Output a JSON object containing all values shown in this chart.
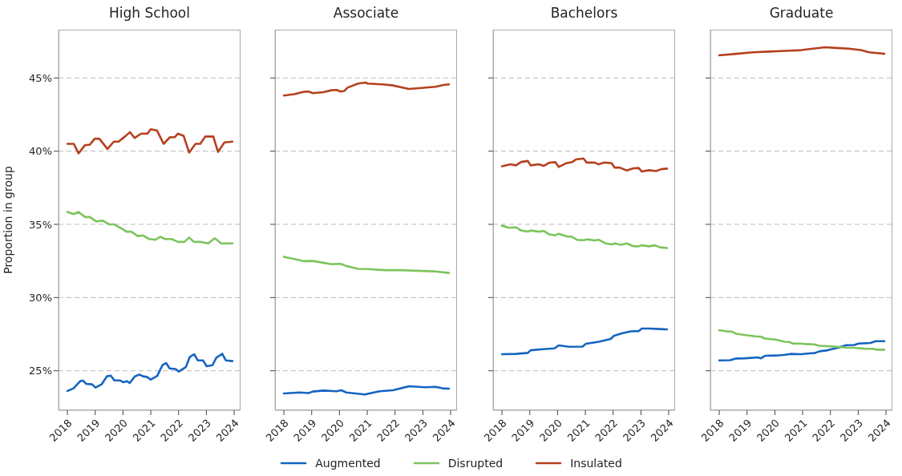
{
  "chart_data": [
    {
      "type": "line",
      "title": "High School",
      "ylabel": "Proportion in group",
      "xlim": [
        2017.68,
        2024.23
      ],
      "xticks": [
        2018,
        2019,
        2020,
        2021,
        2022,
        2023,
        2024
      ],
      "ylim": [
        22.3,
        48.3
      ],
      "yticks": [
        {
          "value": 25,
          "label": "25%"
        },
        {
          "value": 30,
          "label": "30%"
        },
        {
          "value": 35,
          "label": "35%"
        },
        {
          "value": 40,
          "label": "40%"
        },
        {
          "value": 45,
          "label": "45%"
        }
      ],
      "grid": "y",
      "legend": "bottom",
      "marker": "none",
      "line_style": "solid",
      "series": [
        {
          "name": "Augmented",
          "color": "#1565c0",
          "x": [
            2018.0,
            2018.22,
            2018.46,
            2018.56,
            2018.67,
            2018.89,
            2019.01,
            2019.23,
            2019.42,
            2019.56,
            2019.69,
            2019.9,
            2020.0,
            2020.14,
            2020.24,
            2020.43,
            2020.59,
            2020.72,
            2020.86,
            2021.0,
            2021.23,
            2021.42,
            2021.55,
            2021.68,
            2021.89,
            2022.01,
            2022.26,
            2022.4,
            2022.56,
            2022.69,
            2022.88,
            2023.01,
            2023.22,
            2023.36,
            2023.57,
            2023.7,
            2023.94
          ],
          "values": [
            23.62,
            23.8,
            24.29,
            24.33,
            24.11,
            24.07,
            23.85,
            24.07,
            24.62,
            24.67,
            24.34,
            24.34,
            24.22,
            24.29,
            24.16,
            24.62,
            24.74,
            24.62,
            24.58,
            24.4,
            24.65,
            25.38,
            25.53,
            25.16,
            25.12,
            24.95,
            25.25,
            25.93,
            26.13,
            25.71,
            25.71,
            25.31,
            25.38,
            25.89,
            26.16,
            25.71,
            25.66
          ]
        },
        {
          "name": "Disrupted",
          "color": "#7dc45e",
          "x": [
            2018.0,
            2018.23,
            2018.4,
            2018.63,
            2018.81,
            2019.04,
            2019.27,
            2019.5,
            2019.67,
            2019.96,
            2020.13,
            2020.3,
            2020.53,
            2020.71,
            2020.94,
            2021.17,
            2021.34,
            2021.51,
            2021.75,
            2021.98,
            2022.21,
            2022.38,
            2022.55,
            2022.78,
            2023.07,
            2023.3,
            2023.53,
            2023.94
          ],
          "values": [
            35.85,
            35.7,
            35.85,
            35.5,
            35.5,
            35.2,
            35.25,
            35.0,
            35.0,
            34.7,
            34.5,
            34.5,
            34.2,
            34.25,
            34.0,
            33.95,
            34.15,
            34.0,
            34.0,
            33.8,
            33.8,
            34.1,
            33.8,
            33.8,
            33.7,
            34.05,
            33.7,
            33.7
          ]
        },
        {
          "name": "Insulated",
          "color": "#b5401f",
          "x": [
            2018.0,
            2018.23,
            2018.4,
            2018.63,
            2018.81,
            2018.98,
            2019.15,
            2019.44,
            2019.67,
            2019.84,
            2020.07,
            2020.25,
            2020.42,
            2020.65,
            2020.88,
            2021.0,
            2021.23,
            2021.46,
            2021.69,
            2021.86,
            2021.98,
            2022.18,
            2022.38,
            2022.61,
            2022.78,
            2022.96,
            2023.25,
            2023.42,
            2023.65,
            2023.94
          ],
          "values": [
            40.5,
            40.5,
            39.85,
            40.4,
            40.45,
            40.85,
            40.85,
            40.15,
            40.65,
            40.65,
            41.0,
            41.3,
            40.9,
            41.2,
            41.2,
            41.5,
            41.4,
            40.5,
            40.95,
            40.95,
            41.2,
            41.05,
            39.9,
            40.5,
            40.5,
            41.0,
            41.0,
            39.95,
            40.6,
            40.65
          ]
        }
      ]
    },
    {
      "type": "line",
      "title": "Associate",
      "xlim": [
        2017.68,
        2024.23
      ],
      "xticks": [
        2018,
        2019,
        2020,
        2021,
        2022,
        2023,
        2024
      ],
      "ylim": [
        22.3,
        48.3
      ],
      "yticks": [
        {
          "value": 25,
          "label": null
        },
        {
          "value": 30,
          "label": null
        },
        {
          "value": 35,
          "label": null
        },
        {
          "value": 40,
          "label": null
        },
        {
          "value": 45,
          "label": null
        }
      ],
      "tick_labels": "x",
      "grid": "y",
      "marker": "none",
      "line_style": "solid",
      "series": [
        {
          "color": "#1565c0",
          "x": [
            2018.0,
            2018.56,
            2018.89,
            2019.04,
            2019.42,
            2019.9,
            2020.07,
            2020.24,
            2020.91,
            2021.44,
            2021.92,
            2022.5,
            2023.07,
            2023.46,
            2023.7,
            2023.94
          ],
          "values": [
            23.45,
            23.52,
            23.48,
            23.58,
            23.65,
            23.6,
            23.67,
            23.52,
            23.38,
            23.6,
            23.67,
            23.94,
            23.87,
            23.9,
            23.8,
            23.78
          ]
        },
        {
          "color": "#7dc45e",
          "x": [
            2018.0,
            2018.37,
            2018.7,
            2019.04,
            2019.42,
            2019.71,
            2020.04,
            2020.24,
            2020.67,
            2021.01,
            2021.63,
            2022.21,
            2022.78,
            2023.46,
            2023.94
          ],
          "values": [
            32.78,
            32.63,
            32.49,
            32.5,
            32.38,
            32.28,
            32.3,
            32.16,
            31.96,
            31.95,
            31.87,
            31.87,
            31.83,
            31.78,
            31.68
          ]
        },
        {
          "color": "#b5401f",
          "x": [
            2018.0,
            2018.37,
            2018.7,
            2018.89,
            2019.04,
            2019.42,
            2019.71,
            2019.9,
            2020.04,
            2020.17,
            2020.29,
            2020.67,
            2020.94,
            2021.01,
            2021.63,
            2021.92,
            2022.5,
            2022.78,
            2023.46,
            2023.75,
            2023.94
          ],
          "values": [
            43.8,
            43.89,
            44.05,
            44.07,
            43.96,
            44.03,
            44.16,
            44.18,
            44.07,
            44.11,
            44.34,
            44.62,
            44.69,
            44.62,
            44.55,
            44.49,
            44.25,
            44.29,
            44.4,
            44.52,
            44.56
          ]
        }
      ]
    },
    {
      "type": "line",
      "title": "Bachelors",
      "xlim": [
        2017.68,
        2024.23
      ],
      "xticks": [
        2018,
        2019,
        2020,
        2021,
        2022,
        2023,
        2024
      ],
      "ylim": [
        22.3,
        48.3
      ],
      "yticks": [
        {
          "value": 25,
          "label": null
        },
        {
          "value": 30,
          "label": null
        },
        {
          "value": 35,
          "label": null
        },
        {
          "value": 40,
          "label": null
        },
        {
          "value": 45,
          "label": null
        }
      ],
      "tick_labels": "x",
      "grid": "y",
      "marker": "none",
      "line_style": "solid",
      "series": [
        {
          "color": "#1565c0",
          "x": [
            2018.0,
            2018.5,
            2018.93,
            2019.03,
            2019.46,
            2019.89,
            2020.04,
            2020.42,
            2020.9,
            2021.02,
            2021.48,
            2021.91,
            2022.03,
            2022.34,
            2022.63,
            2022.92,
            2023.03,
            2023.3,
            2023.69,
            2023.94
          ],
          "values": [
            26.13,
            26.15,
            26.22,
            26.4,
            26.47,
            26.53,
            26.73,
            26.64,
            26.65,
            26.84,
            26.98,
            27.17,
            27.39,
            27.57,
            27.69,
            27.71,
            27.88,
            27.88,
            27.85,
            27.83
          ]
        },
        {
          "color": "#7dc45e",
          "x": [
            2018.0,
            2018.26,
            2018.5,
            2018.69,
            2018.93,
            2019.03,
            2019.32,
            2019.51,
            2019.7,
            2019.92,
            2020.04,
            2020.33,
            2020.52,
            2020.71,
            2020.95,
            2021.05,
            2021.33,
            2021.48,
            2021.72,
            2021.96,
            2022.05,
            2022.29,
            2022.49,
            2022.73,
            2022.92,
            2023.03,
            2023.3,
            2023.5,
            2023.69,
            2023.94
          ],
          "values": [
            34.91,
            34.77,
            34.8,
            34.58,
            34.51,
            34.58,
            34.5,
            34.55,
            34.31,
            34.25,
            34.36,
            34.18,
            34.15,
            33.94,
            33.92,
            33.98,
            33.9,
            33.95,
            33.7,
            33.63,
            33.7,
            33.6,
            33.7,
            33.51,
            33.5,
            33.57,
            33.5,
            33.57,
            33.43,
            33.38
          ]
        },
        {
          "color": "#b5401f",
          "x": [
            2018.0,
            2018.31,
            2018.5,
            2018.69,
            2018.93,
            2019.03,
            2019.32,
            2019.51,
            2019.7,
            2019.92,
            2020.04,
            2020.33,
            2020.52,
            2020.66,
            2020.93,
            2021.05,
            2021.33,
            2021.48,
            2021.67,
            2021.94,
            2022.05,
            2022.24,
            2022.49,
            2022.73,
            2022.92,
            2023.03,
            2023.3,
            2023.54,
            2023.73,
            2023.94
          ],
          "values": [
            38.97,
            39.1,
            39.03,
            39.26,
            39.33,
            39.03,
            39.1,
            39.0,
            39.21,
            39.25,
            38.92,
            39.19,
            39.25,
            39.43,
            39.5,
            39.22,
            39.22,
            39.1,
            39.22,
            39.19,
            38.88,
            38.88,
            38.68,
            38.83,
            38.85,
            38.61,
            38.7,
            38.64,
            38.77,
            38.81
          ]
        }
      ]
    },
    {
      "type": "line",
      "title": "Graduate",
      "xlim": [
        2017.68,
        2024.23
      ],
      "xticks": [
        2018,
        2019,
        2020,
        2021,
        2022,
        2023,
        2024
      ],
      "ylim": [
        22.3,
        48.3
      ],
      "yticks": [
        {
          "value": 25,
          "label": null
        },
        {
          "value": 30,
          "label": null
        },
        {
          "value": 35,
          "label": null
        },
        {
          "value": 40,
          "label": null
        },
        {
          "value": 45,
          "label": null
        }
      ],
      "tick_labels": "x",
      "grid": "y",
      "marker": "none",
      "line_style": "solid",
      "series": [
        {
          "color": "#1565c0",
          "x": [
            2018.0,
            2018.39,
            2018.61,
            2018.92,
            2019.4,
            2019.5,
            2019.64,
            2020.03,
            2020.36,
            2020.56,
            2020.94,
            2021.32,
            2021.42,
            2021.61,
            2021.9,
            2022.29,
            2022.57,
            2022.86,
            2023.01,
            2023.44,
            2023.63,
            2023.94
          ],
          "values": [
            25.71,
            25.72,
            25.84,
            25.85,
            25.91,
            25.85,
            26.02,
            26.04,
            26.09,
            26.15,
            26.13,
            26.2,
            26.2,
            26.33,
            26.4,
            26.58,
            26.75,
            26.76,
            26.86,
            26.9,
            27.02,
            27.02
          ]
        },
        {
          "color": "#7dc45e",
          "x": [
            2018.0,
            2018.3,
            2018.44,
            2018.61,
            2019.02,
            2019.3,
            2019.5,
            2019.64,
            2020.03,
            2020.36,
            2020.51,
            2020.65,
            2020.94,
            2021.13,
            2021.42,
            2021.61,
            2022.09,
            2022.57,
            2022.86,
            2023.24,
            2023.53,
            2023.68,
            2023.94
          ],
          "values": [
            27.77,
            27.68,
            27.68,
            27.53,
            27.42,
            27.35,
            27.32,
            27.2,
            27.13,
            26.98,
            26.97,
            26.86,
            26.86,
            26.82,
            26.8,
            26.71,
            26.66,
            26.58,
            26.57,
            26.51,
            26.5,
            26.44,
            26.44
          ]
        },
        {
          "color": "#b5401f",
          "x": [
            2018.0,
            2018.63,
            2019.21,
            2019.78,
            2020.36,
            2020.94,
            2021.37,
            2021.8,
            2022.23,
            2022.67,
            2023.1,
            2023.39,
            2023.68,
            2023.94
          ],
          "values": [
            46.55,
            46.65,
            46.75,
            46.8,
            46.85,
            46.9,
            47.0,
            47.1,
            47.05,
            47.0,
            46.9,
            46.75,
            46.7,
            46.65
          ]
        }
      ]
    }
  ]
}
